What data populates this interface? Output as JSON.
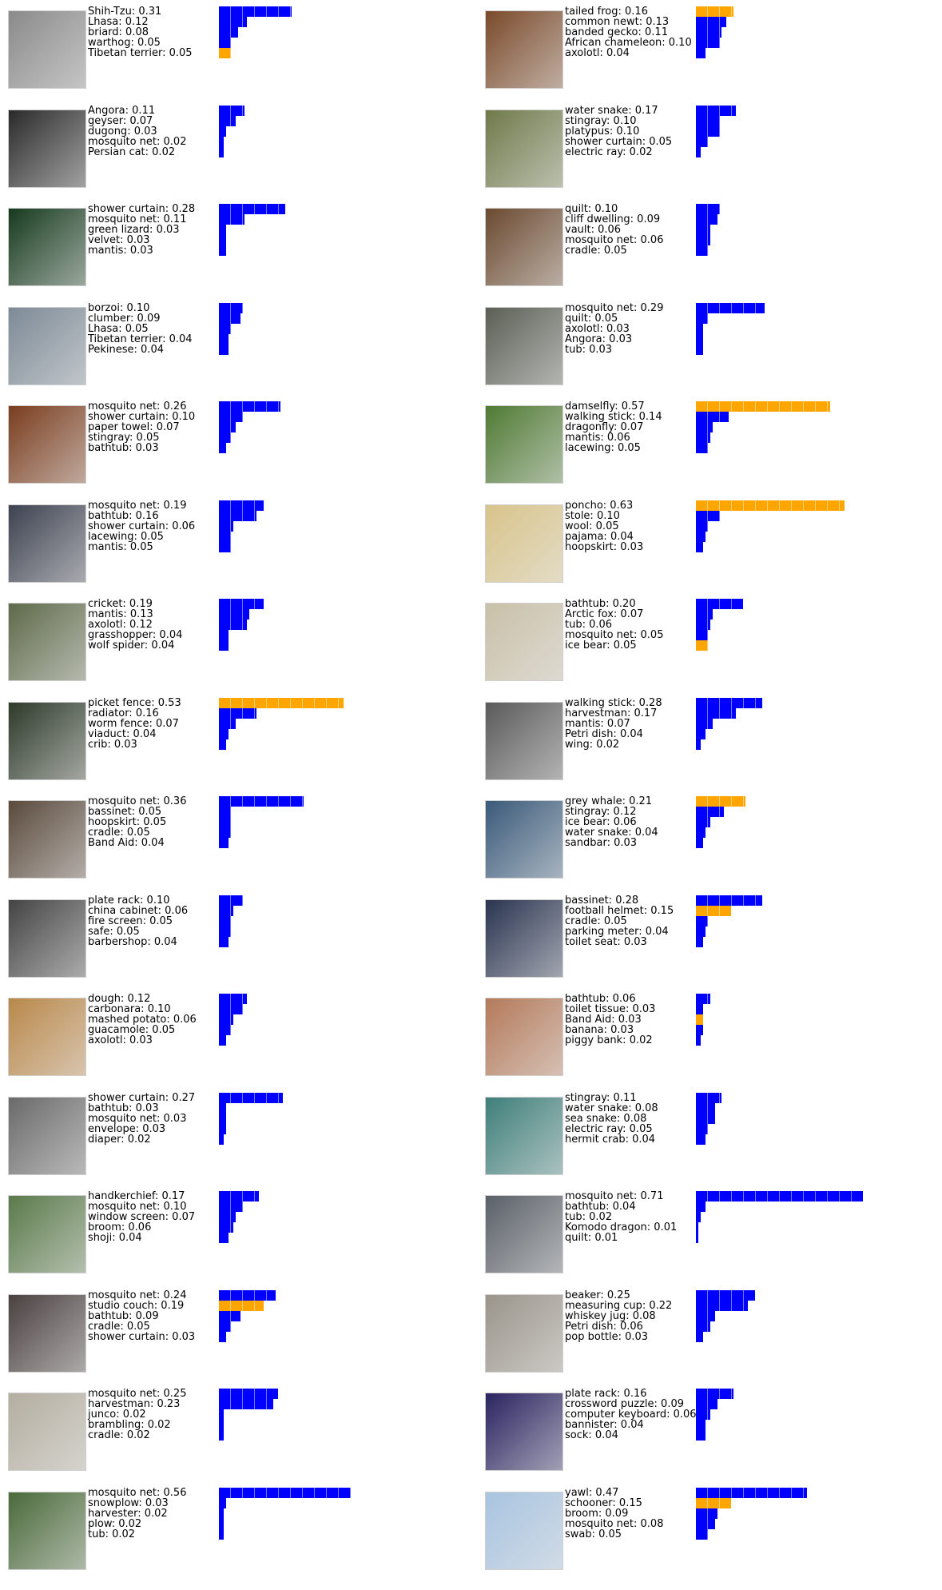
{
  "colors": {
    "correct": "#ffa500",
    "other": "#0000ff"
  },
  "chart_data": {
    "type": "bar",
    "orientation": "horizontal",
    "xlim": [
      0,
      1
    ],
    "panels": [
      {
        "labels": [
          "Shih-Tzu: 0.31",
          "Lhasa: 0.12",
          "briard: 0.08",
          "warthog: 0.05",
          "Tibetan terrier: 0.05"
        ],
        "values": [
          0.31,
          0.12,
          0.08,
          0.05,
          0.05
        ],
        "colors": [
          "#0000ff",
          "#0000ff",
          "#0000ff",
          "#0000ff",
          "#ffa500"
        ],
        "thumb": "#8a8a8a"
      },
      {
        "labels": [
          "tailed frog: 0.16",
          "common newt: 0.13",
          "banded gecko: 0.11",
          "African chameleon: 0.10",
          "axolotl: 0.04"
        ],
        "values": [
          0.16,
          0.13,
          0.11,
          0.1,
          0.04
        ],
        "colors": [
          "#ffa500",
          "#0000ff",
          "#0000ff",
          "#0000ff",
          "#0000ff"
        ],
        "thumb": "#7a4a2a"
      },
      {
        "labels": [
          "Angora: 0.11",
          "geyser: 0.07",
          "dugong: 0.03",
          "mosquito net: 0.02",
          "Persian cat: 0.02"
        ],
        "values": [
          0.11,
          0.07,
          0.03,
          0.02,
          0.02
        ],
        "colors": [
          "#0000ff",
          "#0000ff",
          "#0000ff",
          "#0000ff",
          "#0000ff"
        ],
        "thumb": "#2a2a2a"
      },
      {
        "labels": [
          "water snake: 0.17",
          "stingray: 0.10",
          "platypus: 0.10",
          "shower curtain: 0.05",
          "electric ray: 0.02"
        ],
        "values": [
          0.17,
          0.1,
          0.1,
          0.05,
          0.02
        ],
        "colors": [
          "#0000ff",
          "#0000ff",
          "#0000ff",
          "#0000ff",
          "#0000ff"
        ],
        "thumb": "#6f7a4a"
      },
      {
        "labels": [
          "shower curtain: 0.28",
          "mosquito net: 0.11",
          "green lizard: 0.03",
          "velvet: 0.03",
          "mantis: 0.03"
        ],
        "values": [
          0.28,
          0.11,
          0.03,
          0.03,
          0.03
        ],
        "colors": [
          "#0000ff",
          "#0000ff",
          "#0000ff",
          "#0000ff",
          "#0000ff"
        ],
        "thumb": "#163a1e"
      },
      {
        "labels": [
          "quilt: 0.10",
          "cliff dwelling: 0.09",
          "vault: 0.06",
          "mosquito net: 0.06",
          "cradle: 0.05"
        ],
        "values": [
          0.1,
          0.09,
          0.06,
          0.06,
          0.05
        ],
        "colors": [
          "#0000ff",
          "#0000ff",
          "#0000ff",
          "#0000ff",
          "#0000ff"
        ],
        "thumb": "#6b4a30"
      },
      {
        "labels": [
          "borzoi: 0.10",
          "clumber: 0.09",
          "Lhasa: 0.05",
          "Tibetan terrier: 0.04",
          "Pekinese: 0.04"
        ],
        "values": [
          0.1,
          0.09,
          0.05,
          0.04,
          0.04
        ],
        "colors": [
          "#0000ff",
          "#0000ff",
          "#0000ff",
          "#0000ff",
          "#0000ff"
        ],
        "thumb": "#7d8a96"
      },
      {
        "labels": [
          "mosquito net: 0.29",
          "quilt: 0.05",
          "axolotl: 0.03",
          "Angora: 0.03",
          "tub: 0.03"
        ],
        "values": [
          0.29,
          0.05,
          0.03,
          0.03,
          0.03
        ],
        "colors": [
          "#0000ff",
          "#0000ff",
          "#0000ff",
          "#0000ff",
          "#0000ff"
        ],
        "thumb": "#5b5f55"
      },
      {
        "labels": [
          "mosquito net: 0.26",
          "shower curtain: 0.10",
          "paper towel: 0.07",
          "stingray: 0.05",
          "bathtub: 0.03"
        ],
        "values": [
          0.26,
          0.1,
          0.07,
          0.05,
          0.03
        ],
        "colors": [
          "#0000ff",
          "#0000ff",
          "#0000ff",
          "#0000ff",
          "#0000ff"
        ],
        "thumb": "#7a3d1e"
      },
      {
        "labels": [
          "damselfly: 0.57",
          "walking stick: 0.14",
          "dragonfly: 0.07",
          "mantis: 0.06",
          "lacewing: 0.05"
        ],
        "values": [
          0.57,
          0.14,
          0.07,
          0.06,
          0.05
        ],
        "colors": [
          "#ffa500",
          "#0000ff",
          "#0000ff",
          "#0000ff",
          "#0000ff"
        ],
        "thumb": "#4f7a34"
      },
      {
        "labels": [
          "mosquito net: 0.19",
          "bathtub: 0.16",
          "shower curtain: 0.06",
          "lacewing: 0.05",
          "mantis: 0.05"
        ],
        "values": [
          0.19,
          0.16,
          0.06,
          0.05,
          0.05
        ],
        "colors": [
          "#0000ff",
          "#0000ff",
          "#0000ff",
          "#0000ff",
          "#0000ff"
        ],
        "thumb": "#3d4250"
      },
      {
        "labels": [
          "poncho: 0.63",
          "stole: 0.10",
          "wool: 0.05",
          "pajama: 0.04",
          "hoopskirt: 0.03"
        ],
        "values": [
          0.63,
          0.1,
          0.05,
          0.04,
          0.03
        ],
        "colors": [
          "#ffa500",
          "#0000ff",
          "#0000ff",
          "#0000ff",
          "#0000ff"
        ],
        "thumb": "#d8c48a"
      },
      {
        "labels": [
          "cricket: 0.19",
          "mantis: 0.13",
          "axolotl: 0.12",
          "grasshopper: 0.04",
          "wolf spider: 0.04"
        ],
        "values": [
          0.19,
          0.13,
          0.12,
          0.04,
          0.04
        ],
        "colors": [
          "#0000ff",
          "#0000ff",
          "#0000ff",
          "#0000ff",
          "#0000ff"
        ],
        "thumb": "#5e6a4a"
      },
      {
        "labels": [
          "bathtub: 0.20",
          "Arctic fox: 0.07",
          "tub: 0.06",
          "mosquito net: 0.05",
          "ice bear: 0.05"
        ],
        "values": [
          0.2,
          0.07,
          0.06,
          0.05,
          0.05
        ],
        "colors": [
          "#0000ff",
          "#0000ff",
          "#0000ff",
          "#0000ff",
          "#ffa500"
        ],
        "thumb": "#c9c0a8"
      },
      {
        "labels": [
          "picket fence: 0.53",
          "radiator: 0.16",
          "worm fence: 0.07",
          "viaduct: 0.04",
          "crib: 0.03"
        ],
        "values": [
          0.53,
          0.16,
          0.07,
          0.04,
          0.03
        ],
        "colors": [
          "#ffa500",
          "#0000ff",
          "#0000ff",
          "#0000ff",
          "#0000ff"
        ],
        "thumb": "#2e3a2a"
      },
      {
        "labels": [
          "walking stick: 0.28",
          "harvestman: 0.17",
          "mantis: 0.07",
          "Petri dish: 0.04",
          "wing: 0.02"
        ],
        "values": [
          0.28,
          0.17,
          0.07,
          0.04,
          0.02
        ],
        "colors": [
          "#0000ff",
          "#0000ff",
          "#0000ff",
          "#0000ff",
          "#0000ff"
        ],
        "thumb": "#5a5a5a"
      },
      {
        "labels": [
          "mosquito net: 0.36",
          "bassinet: 0.05",
          "hoopskirt: 0.05",
          "cradle: 0.05",
          "Band Aid: 0.04"
        ],
        "values": [
          0.36,
          0.05,
          0.05,
          0.05,
          0.04
        ],
        "colors": [
          "#0000ff",
          "#0000ff",
          "#0000ff",
          "#0000ff",
          "#0000ff"
        ],
        "thumb": "#5a4a3c"
      },
      {
        "labels": [
          "grey whale: 0.21",
          "stingray: 0.12",
          "ice bear: 0.06",
          "water snake: 0.04",
          "sandbar: 0.03"
        ],
        "values": [
          0.21,
          0.12,
          0.06,
          0.04,
          0.03
        ],
        "colors": [
          "#ffa500",
          "#0000ff",
          "#0000ff",
          "#0000ff",
          "#0000ff"
        ],
        "thumb": "#3a5a7a"
      },
      {
        "labels": [
          "plate rack: 0.10",
          "china cabinet: 0.06",
          "fire screen: 0.05",
          "safe: 0.05",
          "barbershop: 0.04"
        ],
        "values": [
          0.1,
          0.06,
          0.05,
          0.05,
          0.04
        ],
        "colors": [
          "#0000ff",
          "#0000ff",
          "#0000ff",
          "#0000ff",
          "#0000ff"
        ],
        "thumb": "#444444"
      },
      {
        "labels": [
          "bassinet: 0.28",
          "football helmet: 0.15",
          "cradle: 0.05",
          "parking meter: 0.04",
          "toilet seat: 0.03"
        ],
        "values": [
          0.28,
          0.15,
          0.05,
          0.04,
          0.03
        ],
        "colors": [
          "#0000ff",
          "#ffa500",
          "#0000ff",
          "#0000ff",
          "#0000ff"
        ],
        "thumb": "#2a3450"
      },
      {
        "labels": [
          "dough: 0.12",
          "carbonara: 0.10",
          "mashed potato: 0.06",
          "guacamole: 0.05",
          "axolotl: 0.03"
        ],
        "values": [
          0.12,
          0.1,
          0.06,
          0.05,
          0.03
        ],
        "colors": [
          "#0000ff",
          "#0000ff",
          "#0000ff",
          "#0000ff",
          "#0000ff"
        ],
        "thumb": "#b9884a"
      },
      {
        "labels": [
          "bathtub: 0.06",
          "toilet tissue: 0.03",
          "Band Aid: 0.03",
          "banana: 0.03",
          "piggy bank: 0.02"
        ],
        "values": [
          0.06,
          0.03,
          0.03,
          0.03,
          0.02
        ],
        "colors": [
          "#0000ff",
          "#0000ff",
          "#ffa500",
          "#0000ff",
          "#0000ff"
        ],
        "thumb": "#b47a5a"
      },
      {
        "labels": [
          "shower curtain: 0.27",
          "bathtub: 0.03",
          "mosquito net: 0.03",
          "envelope: 0.03",
          "diaper: 0.02"
        ],
        "values": [
          0.27,
          0.03,
          0.03,
          0.03,
          0.02
        ],
        "colors": [
          "#0000ff",
          "#0000ff",
          "#0000ff",
          "#0000ff",
          "#0000ff"
        ],
        "thumb": "#6a6a6a"
      },
      {
        "labels": [
          "stingray: 0.11",
          "water snake: 0.08",
          "sea snake: 0.08",
          "electric ray: 0.05",
          "hermit crab: 0.04"
        ],
        "values": [
          0.11,
          0.08,
          0.08,
          0.05,
          0.04
        ],
        "colors": [
          "#0000ff",
          "#0000ff",
          "#0000ff",
          "#0000ff",
          "#0000ff"
        ],
        "thumb": "#3f7f7a"
      },
      {
        "labels": [
          "handkerchief: 0.17",
          "mosquito net: 0.10",
          "window screen: 0.07",
          "broom: 0.06",
          "shoji: 0.04"
        ],
        "values": [
          0.17,
          0.1,
          0.07,
          0.06,
          0.04
        ],
        "colors": [
          "#0000ff",
          "#0000ff",
          "#0000ff",
          "#0000ff",
          "#0000ff"
        ],
        "thumb": "#5a7a4a"
      },
      {
        "labels": [
          "mosquito net: 0.71",
          "bathtub: 0.04",
          "tub: 0.02",
          "Komodo dragon: 0.01",
          "quilt: 0.01"
        ],
        "values": [
          0.71,
          0.04,
          0.02,
          0.01,
          0.01
        ],
        "colors": [
          "#0000ff",
          "#0000ff",
          "#0000ff",
          "#0000ff",
          "#0000ff"
        ],
        "thumb": "#5a6068"
      },
      {
        "labels": [
          "mosquito net: 0.24",
          "studio couch: 0.19",
          "bathtub: 0.09",
          "cradle: 0.05",
          "shower curtain: 0.03"
        ],
        "values": [
          0.24,
          0.19,
          0.09,
          0.05,
          0.03
        ],
        "colors": [
          "#0000ff",
          "#ffa500",
          "#0000ff",
          "#0000ff",
          "#0000ff"
        ],
        "thumb": "#4a4040"
      },
      {
        "labels": [
          "beaker: 0.25",
          "measuring cup: 0.22",
          "whiskey jug: 0.08",
          "Petri dish: 0.06",
          "pop bottle: 0.03"
        ],
        "values": [
          0.25,
          0.22,
          0.08,
          0.06,
          0.03
        ],
        "colors": [
          "#0000ff",
          "#0000ff",
          "#0000ff",
          "#0000ff",
          "#0000ff"
        ],
        "thumb": "#9a948a"
      },
      {
        "labels": [
          "mosquito net: 0.25",
          "harvestman: 0.23",
          "junco: 0.02",
          "brambling: 0.02",
          "cradle: 0.02"
        ],
        "values": [
          0.25,
          0.23,
          0.02,
          0.02,
          0.02
        ],
        "colors": [
          "#0000ff",
          "#0000ff",
          "#0000ff",
          "#0000ff",
          "#0000ff"
        ],
        "thumb": "#b4aea0"
      },
      {
        "labels": [
          "plate rack: 0.16",
          "crossword puzzle: 0.09",
          "computer keyboard: 0.06",
          "bannister: 0.04",
          "sock: 0.04"
        ],
        "values": [
          0.16,
          0.09,
          0.06,
          0.04,
          0.04
        ],
        "colors": [
          "#0000ff",
          "#0000ff",
          "#0000ff",
          "#0000ff",
          "#0000ff"
        ],
        "thumb": "#2a2460"
      },
      {
        "labels": [
          "mosquito net: 0.56",
          "snowplow: 0.03",
          "harvester: 0.02",
          "plow: 0.02",
          "tub: 0.02"
        ],
        "values": [
          0.56,
          0.03,
          0.02,
          0.02,
          0.02
        ],
        "colors": [
          "#0000ff",
          "#0000ff",
          "#0000ff",
          "#0000ff",
          "#0000ff"
        ],
        "thumb": "#4a6a3a"
      },
      {
        "labels": [
          "yawl: 0.47",
          "schooner: 0.15",
          "broom: 0.09",
          "mosquito net: 0.08",
          "swab: 0.05"
        ],
        "values": [
          0.47,
          0.15,
          0.09,
          0.08,
          0.05
        ],
        "colors": [
          "#0000ff",
          "#ffa500",
          "#0000ff",
          "#0000ff",
          "#0000ff"
        ],
        "thumb": "#a8c4e0"
      }
    ]
  }
}
